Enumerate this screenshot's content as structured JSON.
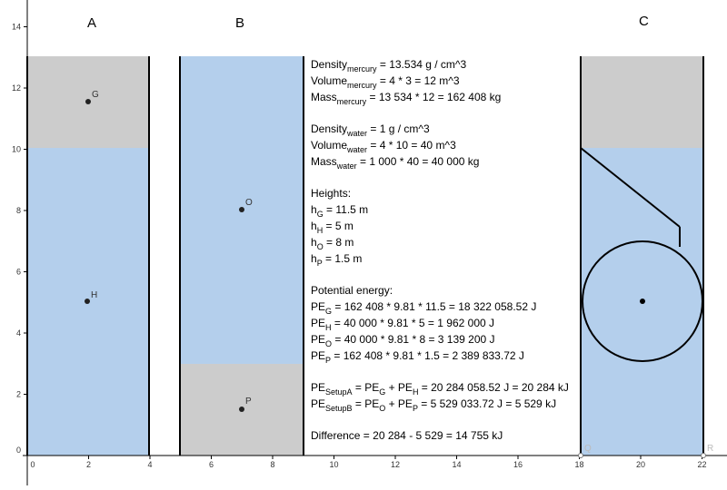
{
  "colors": {
    "water": "#b4cfec",
    "mercury": "#cccccc",
    "wall": "#000000",
    "axis": "#000000"
  },
  "axes": {
    "x_ticks": [
      "0",
      "2",
      "4",
      "6",
      "8",
      "10",
      "12",
      "14",
      "16",
      "18",
      "20",
      "22"
    ],
    "y_ticks": [
      "0",
      "2",
      "4",
      "6",
      "8",
      "10",
      "12",
      "14"
    ]
  },
  "containers": {
    "a": {
      "label": "A"
    },
    "b": {
      "label": "B"
    },
    "c": {
      "label": "C"
    }
  },
  "points": {
    "g": "G",
    "h": "H",
    "o": "O",
    "p": "P",
    "q": "Q",
    "r": "R"
  },
  "text": {
    "mercury": {
      "density_a": "Density",
      "density_sub": "mercury",
      "density_b": " = 13.534 g / cm^3",
      "volume_a": "Volume",
      "volume_sub": "mercury",
      "volume_b": " = 4 * 3 = 12 m^3",
      "mass_a": "Mass",
      "mass_sub": "mercury",
      "mass_b": " = 13 534 * 12 = 162 408 kg"
    },
    "water": {
      "density_a": "Density",
      "density_sub": "water",
      "density_b": " = 1 g / cm^3",
      "volume_a": "Volume",
      "volume_sub": "water",
      "volume_b": " = 4 * 10 = 40 m^3",
      "mass_a": "Mass",
      "mass_sub": "water",
      "mass_b": " = 1 000  * 40 = 40 000 kg"
    },
    "heights": {
      "title": "Heights:",
      "g_a": "h",
      "g_sub": "G",
      "g_b": " = 11.5 m",
      "h_a": "h",
      "h_sub": "H",
      "h_b": " = 5 m",
      "o_a": "h",
      "o_sub": "O",
      "o_b": " = 8 m",
      "p_a": "h",
      "p_sub": "P",
      "p_b": " = 1.5 m"
    },
    "energy": {
      "title": "Potential energy:",
      "g_a": "PE",
      "g_sub": "G",
      "g_b": " = 162 408 * 9.81 * 11.5 = 18 322 058.52  J",
      "h_a": "PE",
      "h_sub": "H",
      "h_b": " = 40 000 * 9.81 * 5 = 1 962 000 J",
      "o_a": "PE",
      "o_sub": "O",
      "o_b": " = 40 000 * 9.81 * 8 = 3 139 200 J",
      "p_a": "PE",
      "p_sub": "P",
      "p_b": " = 162 408 * 9.81 * 1.5 = 2 389 833.72 J"
    },
    "setup": {
      "a_a": "PE",
      "a_sub": "SetupA",
      "a_b": " = PE",
      "a_sub2": "G",
      "a_c": " + PE",
      "a_sub3": "H",
      "a_d": " = 20 284 058.52 J = 20 284 kJ",
      "b_a": "PE",
      "b_sub": "SetupB",
      "b_b": " = PE",
      "b_sub2": "O",
      "b_c": " + PE",
      "b_sub3": "P",
      "b_d": " = 5 529 033.72 J = 5 529 kJ"
    },
    "difference": "Difference = 20 284 - 5 529 = 14 755 kJ"
  }
}
